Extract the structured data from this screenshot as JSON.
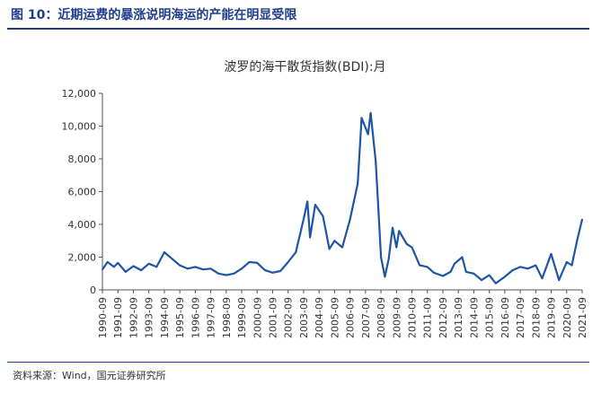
{
  "figure": {
    "title": "图 10：近期运费的暴涨说明海运的产能在明显受限",
    "source": "资料来源：Wind，国元证券研究所"
  },
  "colors": {
    "accent": "#1f3e8c",
    "series": "#1f55a5"
  },
  "chart_data": {
    "type": "line",
    "title": "波罗的海干散货指数(BDI):月",
    "xlabel": "",
    "ylabel": "",
    "ylim": [
      0,
      12000
    ],
    "yticks": [
      0,
      2000,
      4000,
      6000,
      8000,
      10000,
      12000
    ],
    "ytick_labels": [
      "0",
      "2,000",
      "4,000",
      "6,000",
      "8,000",
      "10,000",
      "12,000"
    ],
    "xtick_labels": [
      "1990-09",
      "1991-09",
      "1992-09",
      "1993-09",
      "1994-09",
      "1995-09",
      "1996-09",
      "1997-09",
      "1998-09",
      "1999-09",
      "2000-09",
      "2001-09",
      "2002-09",
      "2003-09",
      "2004-09",
      "2005-09",
      "2006-09",
      "2007-09",
      "2008-09",
      "2009-09",
      "2010-09",
      "2011-09",
      "2012-09",
      "2013-09",
      "2014-09",
      "2015-09",
      "2016-09",
      "2017-09",
      "2018-09",
      "2019-09",
      "2020-09",
      "2021-09"
    ],
    "grid": false,
    "legend": "none",
    "series": [
      {
        "x": [
          "1990-09",
          "1991-01",
          "1991-06",
          "1991-09",
          "1992-03",
          "1992-09",
          "1993-03",
          "1993-09",
          "1994-03",
          "1994-09",
          "1995-03",
          "1995-09",
          "1996-03",
          "1996-09",
          "1997-03",
          "1997-09",
          "1998-03",
          "1998-09",
          "1999-03",
          "1999-09",
          "2000-03",
          "2000-09",
          "2001-03",
          "2001-09",
          "2002-03",
          "2002-09",
          "2003-03",
          "2003-09",
          "2003-12",
          "2004-02",
          "2004-06",
          "2004-12",
          "2005-05",
          "2005-09",
          "2006-03",
          "2006-09",
          "2007-03",
          "2007-06",
          "2007-11",
          "2008-01",
          "2008-05",
          "2008-09",
          "2008-12",
          "2009-03",
          "2009-06",
          "2009-09",
          "2009-11",
          "2010-05",
          "2010-09",
          "2011-03",
          "2011-09",
          "2012-02",
          "2012-09",
          "2013-03",
          "2013-06",
          "2013-12",
          "2014-03",
          "2014-09",
          "2014-12",
          "2015-03",
          "2015-09",
          "2016-02",
          "2016-09",
          "2017-03",
          "2017-09",
          "2018-03",
          "2018-09",
          "2019-02",
          "2019-09",
          "2020-03",
          "2020-09",
          "2021-01",
          "2021-05",
          "2021-09"
        ],
        "y": [
          1250,
          1700,
          1400,
          1650,
          1100,
          1450,
          1200,
          1600,
          1400,
          2300,
          1900,
          1500,
          1300,
          1400,
          1250,
          1300,
          1000,
          900,
          1000,
          1300,
          1700,
          1650,
          1200,
          1050,
          1150,
          1700,
          2300,
          4300,
          5400,
          3200,
          5200,
          4500,
          2500,
          3000,
          2600,
          4300,
          6500,
          10500,
          9500,
          10800,
          7800,
          2000,
          800,
          1900,
          3800,
          2600,
          3600,
          2800,
          2600,
          1500,
          1400,
          1050,
          850,
          1100,
          1600,
          2000,
          1100,
          1000,
          800,
          600,
          900,
          400,
          800,
          1200,
          1400,
          1300,
          1500,
          700,
          2200,
          600,
          1700,
          1500,
          3000,
          4300
        ]
      }
    ]
  }
}
